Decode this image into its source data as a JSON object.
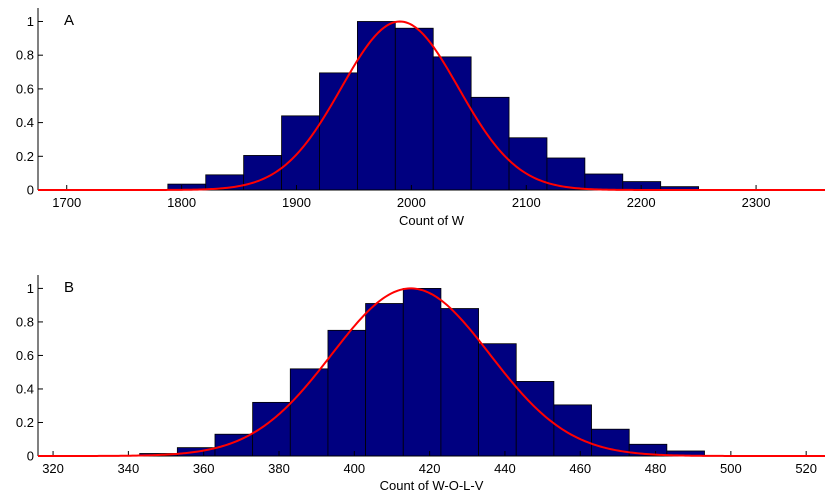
{
  "chart_data": [
    {
      "type": "bar",
      "panel_label": "A",
      "xlabel": "Count of W",
      "ylabel": "",
      "xlim": [
        1675,
        2360
      ],
      "ylim": [
        0,
        1.08
      ],
      "xticks": [
        1700,
        1800,
        1900,
        2000,
        2100,
        2200,
        2300
      ],
      "yticks": [
        0,
        0.2,
        0.4,
        0.6,
        0.8,
        1
      ],
      "ytick_labels": [
        "0",
        "0.2",
        "0.4",
        "0.6",
        "0.8",
        "1"
      ],
      "bin_edges": [
        1788,
        1821,
        1854,
        1887,
        1920,
        1953,
        1986,
        2019,
        2052,
        2085,
        2118,
        2151,
        2184,
        2217,
        2250
      ],
      "values": [
        0.035,
        0.09,
        0.205,
        0.44,
        0.695,
        1.0,
        0.96,
        0.79,
        0.55,
        0.31,
        0.19,
        0.095,
        0.05,
        0.02
      ],
      "bar_color": "#000080",
      "curve": {
        "type": "gaussian",
        "mean": 1990,
        "sd": 51,
        "peak": 1.0,
        "color": "#ff0000"
      },
      "grid": false
    },
    {
      "type": "bar",
      "panel_label": "B",
      "xlabel": "Count of W-O-L-V",
      "ylabel": "",
      "xlim": [
        316,
        525
      ],
      "ylim": [
        0,
        1.08
      ],
      "xticks": [
        320,
        340,
        360,
        380,
        400,
        420,
        440,
        460,
        480,
        500,
        520
      ],
      "yticks": [
        0,
        0.2,
        0.4,
        0.6,
        0.8,
        1
      ],
      "ytick_labels": [
        "0",
        "0.2",
        "0.4",
        "0.6",
        "0.8",
        "1"
      ],
      "bin_edges": [
        343,
        353,
        363,
        373,
        383,
        393,
        403,
        413,
        423,
        433,
        443,
        453,
        463,
        473,
        483,
        493
      ],
      "values": [
        0.015,
        0.05,
        0.13,
        0.32,
        0.52,
        0.75,
        0.91,
        1.0,
        0.88,
        0.67,
        0.445,
        0.305,
        0.16,
        0.07,
        0.03
      ],
      "bar_color": "#000080",
      "curve": {
        "type": "gaussian",
        "mean": 415,
        "sd": 21,
        "peak": 1.0,
        "color": "#ff0000"
      },
      "grid": false
    }
  ]
}
